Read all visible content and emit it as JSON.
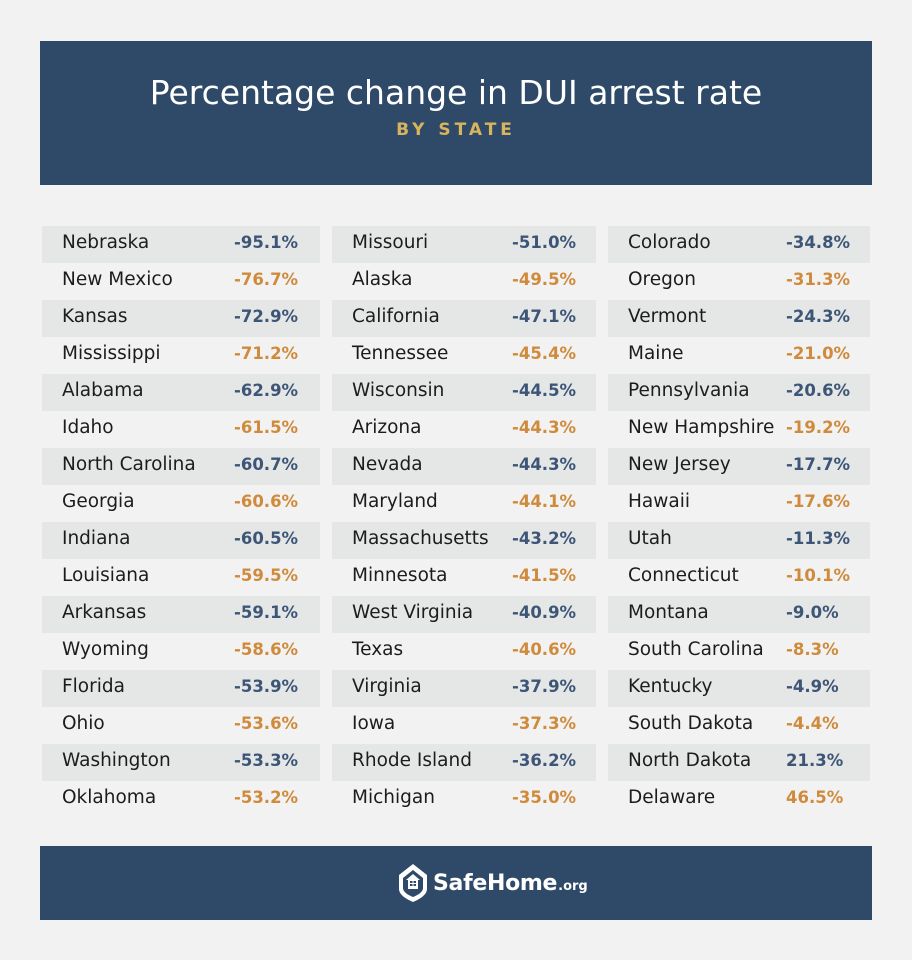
{
  "header": {
    "title": "Percentage change in DUI arrest rate",
    "subtitle": "BY STATE"
  },
  "colors": {
    "header_bg": "#2f4a68",
    "subtitle": "#d8b45c",
    "value_blue": "#3d5677",
    "value_orange": "#d08a3c",
    "row_shade": "#e5e6e6"
  },
  "columns": [
    [
      {
        "state": "Nebraska",
        "value": "-95.1%"
      },
      {
        "state": "New Mexico",
        "value": "-76.7%"
      },
      {
        "state": "Kansas",
        "value": "-72.9%"
      },
      {
        "state": "Mississippi",
        "value": "-71.2%"
      },
      {
        "state": "Alabama",
        "value": "-62.9%"
      },
      {
        "state": "Idaho",
        "value": "-61.5%"
      },
      {
        "state": "North Carolina",
        "value": "-60.7%"
      },
      {
        "state": "Georgia",
        "value": "-60.6%"
      },
      {
        "state": "Indiana",
        "value": "-60.5%"
      },
      {
        "state": "Louisiana",
        "value": "-59.5%"
      },
      {
        "state": "Arkansas",
        "value": "-59.1%"
      },
      {
        "state": "Wyoming",
        "value": "-58.6%"
      },
      {
        "state": "Florida",
        "value": "-53.9%"
      },
      {
        "state": "Ohio",
        "value": "-53.6%"
      },
      {
        "state": "Washington",
        "value": "-53.3%"
      },
      {
        "state": "Oklahoma",
        "value": "-53.2%"
      }
    ],
    [
      {
        "state": "Missouri",
        "value": "-51.0%"
      },
      {
        "state": "Alaska",
        "value": "-49.5%"
      },
      {
        "state": "California",
        "value": "-47.1%"
      },
      {
        "state": "Tennessee",
        "value": "-45.4%"
      },
      {
        "state": "Wisconsin",
        "value": "-44.5%"
      },
      {
        "state": "Arizona",
        "value": "-44.3%"
      },
      {
        "state": "Nevada",
        "value": "-44.3%"
      },
      {
        "state": "Maryland",
        "value": "-44.1%"
      },
      {
        "state": "Massachusetts",
        "value": "-43.2%"
      },
      {
        "state": "Minnesota",
        "value": "-41.5%"
      },
      {
        "state": "West Virginia",
        "value": "-40.9%"
      },
      {
        "state": "Texas",
        "value": "-40.6%"
      },
      {
        "state": "Virginia",
        "value": "-37.9%"
      },
      {
        "state": "Iowa",
        "value": "-37.3%"
      },
      {
        "state": "Rhode Island",
        "value": "-36.2%"
      },
      {
        "state": "Michigan",
        "value": "-35.0%"
      }
    ],
    [
      {
        "state": "Colorado",
        "value": "-34.8%"
      },
      {
        "state": "Oregon",
        "value": "-31.3%"
      },
      {
        "state": "Vermont",
        "value": "-24.3%"
      },
      {
        "state": "Maine",
        "value": "-21.0%"
      },
      {
        "state": "Pennsylvania",
        "value": "-20.6%"
      },
      {
        "state": "New Hampshire",
        "value": "-19.2%"
      },
      {
        "state": "New Jersey",
        "value": "-17.7%"
      },
      {
        "state": "Hawaii",
        "value": "-17.6%"
      },
      {
        "state": "Utah",
        "value": "-11.3%"
      },
      {
        "state": "Connecticut",
        "value": "-10.1%"
      },
      {
        "state": "Montana",
        "value": "-9.0%"
      },
      {
        "state": "South Carolina",
        "value": "-8.3%"
      },
      {
        "state": "Kentucky",
        "value": "-4.9%"
      },
      {
        "state": "South Dakota",
        "value": "-4.4%"
      },
      {
        "state": "North Dakota",
        "value": "21.3%"
      },
      {
        "state": "Delaware",
        "value": "46.5%"
      }
    ]
  ],
  "footer": {
    "logo_icon": "house-shield-icon",
    "brand": "SafeHome",
    "brand_suffix": ".org"
  }
}
